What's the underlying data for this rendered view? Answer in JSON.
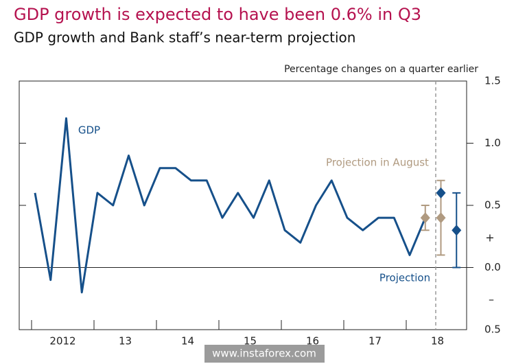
{
  "chart_data": {
    "type": "line",
    "title": "GDP growth is expected to have been 0.6% in Q3",
    "subtitle": "GDP growth and Bank staff’s near-term projection",
    "y_axis_label": "Percentage changes on a quarter earlier",
    "sign_labels": [
      "+",
      "–"
    ],
    "watermark": "www.instaforex.com",
    "categories": [
      "2012",
      null,
      null,
      null,
      "13",
      null,
      null,
      null,
      "14",
      null,
      null,
      null,
      "15",
      null,
      null,
      null,
      "16",
      null,
      null,
      null,
      "17",
      null,
      null,
      null,
      "18",
      null,
      null,
      null
    ],
    "series": [
      {
        "name": "GDP",
        "type": "line",
        "color": "#16508a",
        "values": [
          0.6,
          -0.1,
          1.2,
          -0.2,
          0.6,
          0.5,
          0.9,
          0.5,
          0.8,
          0.8,
          0.7,
          0.7,
          0.4,
          0.6,
          0.4,
          0.7,
          0.3,
          0.2,
          0.5,
          0.7,
          0.4,
          0.3,
          0.4,
          0.4,
          0.1,
          0.4,
          null,
          null
        ]
      },
      {
        "name": "Projection in August",
        "type": "diamond",
        "color": "#b09a80",
        "values": [
          null,
          null,
          null,
          null,
          null,
          null,
          null,
          null,
          null,
          null,
          null,
          null,
          null,
          null,
          null,
          null,
          null,
          null,
          null,
          null,
          null,
          null,
          null,
          null,
          null,
          0.4,
          0.4,
          null
        ],
        "low": [
          null,
          null,
          null,
          null,
          null,
          null,
          null,
          null,
          null,
          null,
          null,
          null,
          null,
          null,
          null,
          null,
          null,
          null,
          null,
          null,
          null,
          null,
          null,
          null,
          null,
          0.3,
          0.1,
          null
        ],
        "high": [
          null,
          null,
          null,
          null,
          null,
          null,
          null,
          null,
          null,
          null,
          null,
          null,
          null,
          null,
          null,
          null,
          null,
          null,
          null,
          null,
          null,
          null,
          null,
          null,
          null,
          0.5,
          0.7,
          null
        ]
      },
      {
        "name": "Projection",
        "type": "diamond",
        "color": "#16508a",
        "values": [
          null,
          null,
          null,
          null,
          null,
          null,
          null,
          null,
          null,
          null,
          null,
          null,
          null,
          null,
          null,
          null,
          null,
          null,
          null,
          null,
          null,
          null,
          null,
          null,
          null,
          null,
          0.6,
          0.3
        ],
        "low": [
          null,
          null,
          null,
          null,
          null,
          null,
          null,
          null,
          null,
          null,
          null,
          null,
          null,
          null,
          null,
          null,
          null,
          null,
          null,
          null,
          null,
          null,
          null,
          null,
          null,
          null,
          null,
          0.0
        ],
        "high": [
          null,
          null,
          null,
          null,
          null,
          null,
          null,
          null,
          null,
          null,
          null,
          null,
          null,
          null,
          null,
          null,
          null,
          null,
          null,
          null,
          null,
          null,
          null,
          null,
          null,
          null,
          null,
          0.6
        ]
      }
    ],
    "ylim": [
      -0.5,
      1.5
    ],
    "yticks": [
      {
        "value": -0.5,
        "label": "0.5"
      },
      {
        "value": 0,
        "label": "0.0"
      },
      0.5,
      {
        "value": 1,
        "label": "1.0"
      },
      1.5
    ]
  }
}
